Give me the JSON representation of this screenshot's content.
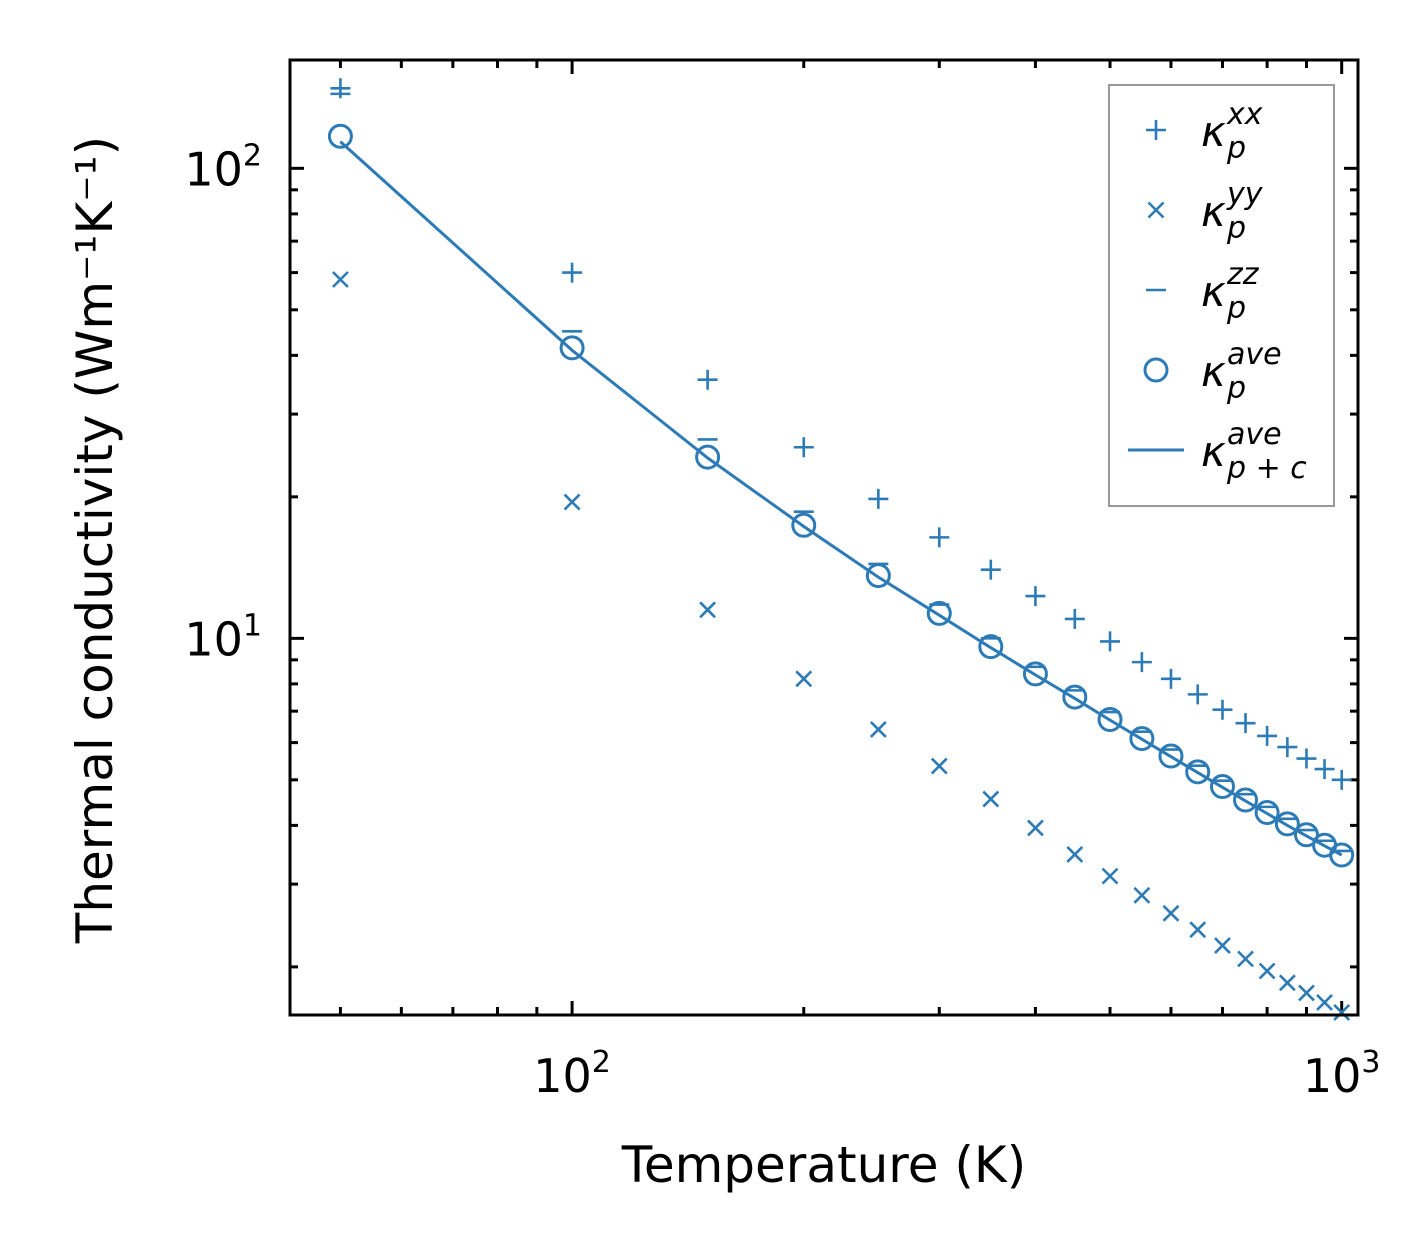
{
  "chart_data": {
    "type": "scatter",
    "xscale": "log",
    "yscale": "log",
    "xlabel": "Temperature (K)",
    "ylabel": "Thermal conductivity (Wm⁻¹K⁻¹)",
    "xlim": [
      43,
      1050
    ],
    "ylim": [
      1.58,
      170
    ],
    "x_ticks": [
      {
        "value": 100,
        "base": "10",
        "exp": "2"
      },
      {
        "value": 1000,
        "base": "10",
        "exp": "3"
      }
    ],
    "y_ticks": [
      {
        "value": 10,
        "base": "10",
        "exp": "1"
      },
      {
        "value": 100,
        "base": "10",
        "exp": "2"
      }
    ],
    "legend_position": "top-right",
    "x": [
      50,
      100,
      150,
      200,
      250,
      300,
      350,
      400,
      450,
      500,
      550,
      600,
      650,
      700,
      750,
      800,
      850,
      900,
      950,
      1000
    ],
    "series": [
      {
        "name": "κp^xx",
        "sym": "κ",
        "sub": "p",
        "sup": "xx",
        "marker": "plus",
        "values": [
          148,
          60,
          35.5,
          25.5,
          19.8,
          16.4,
          14.0,
          12.3,
          11.0,
          9.85,
          8.9,
          8.2,
          7.6,
          7.05,
          6.6,
          6.2,
          5.87,
          5.55,
          5.27,
          5.0
        ]
      },
      {
        "name": "κp^yy",
        "sym": "κ",
        "sub": "p",
        "sup": "yy",
        "marker": "x",
        "values": [
          58,
          19.5,
          11.5,
          8.2,
          6.4,
          5.35,
          4.55,
          3.95,
          3.47,
          3.12,
          2.84,
          2.6,
          2.4,
          2.22,
          2.08,
          1.96,
          1.85,
          1.76,
          1.68,
          1.6
        ]
      },
      {
        "name": "κp^zz",
        "sym": "κ",
        "sub": "p",
        "sup": "zz",
        "marker": "hline",
        "values": [
          144,
          45,
          26.5,
          18.6,
          14.4,
          11.8,
          10.0,
          8.7,
          7.75,
          6.97,
          6.33,
          5.8,
          5.36,
          4.98,
          4.66,
          4.38,
          4.13,
          3.91,
          3.71,
          3.53
        ]
      },
      {
        "name": "κp^ave",
        "sym": "κ",
        "sub": "p",
        "sup": "ave",
        "marker": "circle",
        "values": [
          117,
          41.5,
          24.3,
          17.4,
          13.6,
          11.3,
          9.6,
          8.4,
          7.5,
          6.72,
          6.12,
          5.62,
          5.2,
          4.84,
          4.53,
          4.26,
          4.03,
          3.82,
          3.63,
          3.46
        ]
      },
      {
        "name": "κp+c^ave",
        "sym": "κ",
        "sub": "p + c",
        "sup": "ave",
        "marker": "line",
        "values": [
          114,
          41.0,
          24.2,
          17.3,
          13.5,
          11.2,
          9.55,
          8.36,
          7.45,
          6.7,
          6.1,
          5.6,
          5.18,
          4.82,
          4.51,
          4.24,
          4.0,
          3.8,
          3.62,
          3.46
        ]
      }
    ]
  },
  "colors": {
    "series": "#2c7bb6",
    "axis": "#000000",
    "legend_border": "#9a9a9a"
  }
}
